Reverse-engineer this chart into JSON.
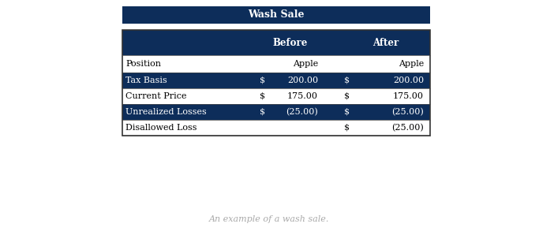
{
  "title": "Wash Sale",
  "caption": "An example of a wash sale.",
  "header_bg": "#0d2d5a",
  "header_text_color": "#ffffff",
  "row_bg_dark": "#0d2d5a",
  "row_bg_light": "#ffffff",
  "row_text_dark": "#ffffff",
  "row_text_light": "#000000",
  "border_color": "#1a1a1a",
  "rows": [
    {
      "label": "Position",
      "dark": false,
      "before_dollar": "",
      "before_val": "Apple",
      "after_dollar": "",
      "after_val": "Apple"
    },
    {
      "label": "Tax Basis",
      "dark": true,
      "before_dollar": "$",
      "before_val": "200.00",
      "after_dollar": "$",
      "after_val": "200.00"
    },
    {
      "label": "Current Price",
      "dark": false,
      "before_dollar": "$",
      "before_val": "175.00",
      "after_dollar": "$",
      "after_val": "175.00"
    },
    {
      "label": "Unrealized Losses",
      "dark": true,
      "before_dollar": "$",
      "before_val": "(25.00)",
      "after_dollar": "$",
      "after_val": "(25.00)"
    },
    {
      "label": "Disallowed Loss",
      "dark": false,
      "before_dollar": "",
      "before_val": "",
      "after_dollar": "$",
      "after_val": "(25.00)"
    }
  ],
  "title_fontsize": 9,
  "header_fontsize": 8.5,
  "row_fontsize": 8,
  "caption_fontsize": 8,
  "caption_color": "#aaaaaa"
}
